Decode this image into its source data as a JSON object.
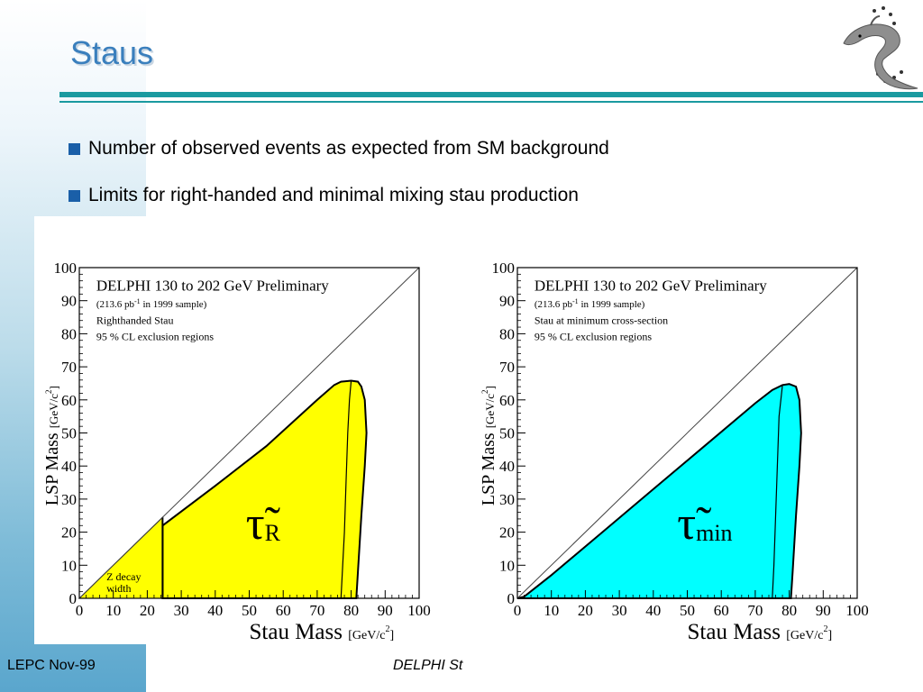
{
  "slide": {
    "title": "Staus",
    "bullets": [
      "Number of observed events as expected from SM background",
      "Limits for right-handed and minimal mixing stau production"
    ],
    "footer_left": "LEPC Nov-99",
    "footer_center": "DELPHI St"
  },
  "colors": {
    "title": "#3a7fbd",
    "rule": "#1a9aa0",
    "bullet": "#1a5fa8",
    "region_left": "#ffff00",
    "region_right": "#00ffff"
  },
  "logo": {
    "icon": "dolphin-with-stars-logo"
  },
  "chart_data": [
    {
      "type": "area",
      "title": "DELPHI 130 to 202 GeV Preliminary",
      "subtitle_lines": [
        "(213.6 pb",
        "-1",
        " in 1999 sample)"
      ],
      "description_lines": [
        "Righthanded Stau",
        "95 % CL exclusion regions"
      ],
      "xlabel": "Stau Mass",
      "xlabel_unit": "[GeV/c",
      "xlabel_unit_sup": "2",
      "xlabel_unit_close": "]",
      "ylabel": "LSP Mass",
      "ylabel_unit": "[GeV/c",
      "ylabel_unit_sup": "2",
      "ylabel_unit_close": "]",
      "xlim": [
        0,
        100
      ],
      "ylim": [
        0,
        100
      ],
      "xticks": [
        0,
        10,
        20,
        30,
        40,
        50,
        60,
        70,
        80,
        90,
        100
      ],
      "yticks": [
        0,
        10,
        20,
        30,
        40,
        50,
        60,
        70,
        80,
        90,
        100
      ],
      "diagonal": [
        [
          0,
          0
        ],
        [
          100,
          100
        ]
      ],
      "z_region": {
        "label_lines": [
          "Z decay",
          "width"
        ],
        "points": [
          [
            0,
            0
          ],
          [
            24.5,
            0
          ],
          [
            24.5,
            24.5
          ]
        ]
      },
      "excluded_region": {
        "label": "τ̃",
        "label_sub": "R",
        "points": [
          [
            24.5,
            0
          ],
          [
            24.5,
            22
          ],
          [
            40,
            34
          ],
          [
            55,
            46
          ],
          [
            70,
            60
          ],
          [
            75,
            64.5
          ],
          [
            77,
            65.5
          ],
          [
            80,
            65.8
          ],
          [
            82,
            65.5
          ],
          [
            83,
            64
          ],
          [
            84,
            60
          ],
          [
            84.5,
            50
          ],
          [
            84,
            40
          ],
          [
            83,
            25
          ],
          [
            82,
            8
          ],
          [
            81.5,
            0
          ]
        ]
      },
      "inner_boundary": [
        [
          77,
          0
        ],
        [
          77.5,
          10
        ],
        [
          78,
          20
        ],
        [
          78.5,
          35
        ],
        [
          79,
          50
        ],
        [
          79.5,
          60
        ],
        [
          80,
          65.8
        ]
      ]
    },
    {
      "type": "area",
      "title": "DELPHI 130 to 202 GeV Preliminary",
      "subtitle_lines": [
        "(213.6 pb",
        "-1",
        " in 1999 sample)"
      ],
      "description_lines": [
        "Stau at minimum cross-section",
        "95 % CL exclusion regions"
      ],
      "xlabel": "Stau Mass",
      "xlabel_unit": "[GeV/c",
      "xlabel_unit_sup": "2",
      "xlabel_unit_close": "]",
      "ylabel": "LSP Mass",
      "ylabel_unit": "[GeV/c",
      "ylabel_unit_sup": "2",
      "ylabel_unit_close": "]",
      "xlim": [
        0,
        100
      ],
      "ylim": [
        0,
        100
      ],
      "xticks": [
        0,
        10,
        20,
        30,
        40,
        50,
        60,
        70,
        80,
        90,
        100
      ],
      "yticks": [
        0,
        10,
        20,
        30,
        40,
        50,
        60,
        70,
        80,
        90,
        100
      ],
      "diagonal": [
        [
          0,
          0
        ],
        [
          100,
          100
        ]
      ],
      "excluded_region": {
        "label": "τ̃",
        "label_sub": "min",
        "points": [
          [
            0,
            0
          ],
          [
            2,
            0.5
          ],
          [
            10,
            7
          ],
          [
            25,
            20
          ],
          [
            40,
            33
          ],
          [
            55,
            46
          ],
          [
            70,
            59
          ],
          [
            75,
            63
          ],
          [
            78,
            64.5
          ],
          [
            80,
            64.8
          ],
          [
            82,
            64
          ],
          [
            83,
            60
          ],
          [
            83.5,
            50
          ],
          [
            83,
            40
          ],
          [
            82,
            25
          ],
          [
            81,
            8
          ],
          [
            80.5,
            0
          ]
        ]
      },
      "inner_boundary": [
        [
          75,
          0
        ],
        [
          75.5,
          10
        ],
        [
          76,
          25
        ],
        [
          76.5,
          40
        ],
        [
          77,
          55
        ],
        [
          78,
          64.5
        ]
      ]
    }
  ]
}
